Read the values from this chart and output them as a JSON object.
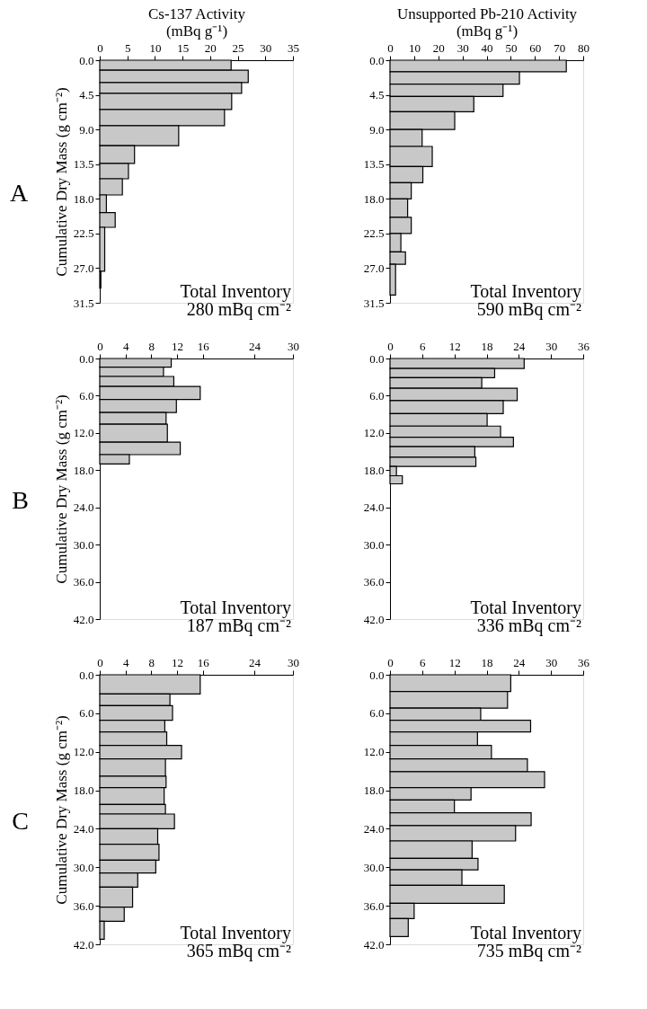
{
  "chart_data": [
    {
      "type": "histogram",
      "orientation": "horizontal",
      "title": "A",
      "xlabel": "Cs-137 Activity\n(mBq g⁻¹)",
      "ylabel": "Cumulative Dry Mass (g cm⁻²)",
      "color": "#c8c8c8",
      "bins": [
        0,
        1.3,
        2.9,
        4.3,
        6.4,
        8.5,
        11.1,
        13.4,
        15.4,
        17.5,
        19.8,
        21.7,
        27.4,
        29.6
      ],
      "values": [
        23.8,
        26.9,
        25.7,
        23.9,
        22.6,
        14.3,
        6.3,
        5.2,
        4.1,
        1.2,
        2.8,
        0.9,
        0.2
      ],
      "xlim": [
        0,
        35
      ],
      "xticks": [
        0,
        5,
        10,
        15,
        20,
        25,
        30,
        35
      ],
      "ylim": [
        31.5,
        0
      ],
      "yticks": [
        {
          "value": 0,
          "label": "0.0"
        },
        4.5,
        {
          "value": 9,
          "label": "9.0"
        },
        13.5,
        {
          "value": 18,
          "label": "18.0"
        },
        22.5,
        {
          "value": 27,
          "label": "27.0"
        },
        31.5
      ],
      "annotations": [
        "Total Inventory\n280 mBq cm⁻²"
      ],
      "grid": false
    },
    {
      "type": "histogram",
      "orientation": "horizontal",
      "xlabel": "Unsupported Pb-210 Activity\n(mBq g⁻¹)",
      "color": "#c8c8c8",
      "bins": [
        0,
        1.5,
        3.1,
        4.7,
        6.7,
        9.0,
        11.2,
        13.8,
        15.9,
        18.0,
        20.4,
        22.5,
        24.9,
        26.5,
        30.5
      ],
      "values": [
        73,
        53.6,
        46.8,
        34.7,
        26.8,
        13.3,
        17.5,
        13.6,
        8.8,
        7.3,
        8.8,
        4.5,
        6.4,
        2.3
      ],
      "xlim": [
        0,
        80
      ],
      "xticks": [
        0,
        10,
        20,
        30,
        40,
        50,
        60,
        70,
        80
      ],
      "ylim": [
        31.5,
        0
      ],
      "yticks": [
        {
          "value": 0,
          "label": "0.0"
        },
        4.5,
        {
          "value": 9,
          "label": "9.0"
        },
        13.5,
        {
          "value": 18,
          "label": "18.0"
        },
        22.5,
        {
          "value": 27,
          "label": "27.0"
        },
        31.5
      ],
      "annotations": [
        "Total Inventory\n590 mBq cm⁻²"
      ],
      "grid": false
    },
    {
      "type": "histogram",
      "orientation": "horizontal",
      "title": "B",
      "ylabel": "Cumulative Dry Mass (g cm⁻²)",
      "color": "#c8c8c8",
      "bins": [
        0,
        1.4,
        2.9,
        4.5,
        6.6,
        8.7,
        10.6,
        13.5,
        15.5,
        17.0
      ],
      "values": [
        11.1,
        9.9,
        11.5,
        15.6,
        11.9,
        10.3,
        10.5,
        12.5,
        4.6
      ],
      "xlim": [
        0,
        30
      ],
      "xticks": [
        0,
        4,
        8,
        12,
        16,
        24,
        30
      ],
      "ylim": [
        42,
        0
      ],
      "yticks": [
        {
          "value": 0,
          "label": "0.0"
        },
        {
          "value": 6,
          "label": "6.0"
        },
        {
          "value": 12,
          "label": "12.0"
        },
        {
          "value": 18,
          "label": "18.0"
        },
        {
          "value": 24,
          "label": "24.0"
        },
        {
          "value": 30,
          "label": "30.0"
        },
        {
          "value": 36,
          "label": "36.0"
        },
        {
          "value": 42,
          "label": "42.0"
        }
      ],
      "annotations": [
        "Total Inventory\n187 mBq cm⁻²"
      ],
      "grid": false
    },
    {
      "type": "histogram",
      "orientation": "horizontal",
      "color": "#c8c8c8",
      "bins": [
        0,
        1.6,
        3.1,
        4.8,
        6.8,
        8.9,
        10.9,
        12.7,
        14.2,
        15.9,
        17.4,
        18.9,
        20.2
      ],
      "values": [
        25.0,
        19.5,
        17.1,
        23.7,
        21.1,
        18.1,
        20.6,
        23.0,
        15.8,
        16.0,
        1.2,
        2.3
      ],
      "xlim": [
        0,
        36
      ],
      "xticks": [
        0,
        6,
        12,
        18,
        24,
        30,
        36
      ],
      "ylim": [
        42,
        0
      ],
      "yticks": [
        {
          "value": 0,
          "label": "0.0"
        },
        {
          "value": 6,
          "label": "6.0"
        },
        {
          "value": 12,
          "label": "12.0"
        },
        {
          "value": 18,
          "label": "18.0"
        },
        {
          "value": 24,
          "label": "24.0"
        },
        {
          "value": 30,
          "label": "30.0"
        },
        {
          "value": 36,
          "label": "36.0"
        },
        {
          "value": 42,
          "label": "42.0"
        }
      ],
      "annotations": [
        "Total Inventory\n336 mBq cm⁻²"
      ],
      "grid": false
    },
    {
      "type": "histogram",
      "orientation": "horizontal",
      "title": "C",
      "ylabel": "Cumulative Dry Mass (g cm⁻²)",
      "color": "#c8c8c8",
      "bins": [
        0,
        3.0,
        4.8,
        7.1,
        8.9,
        11.0,
        13.1,
        15.8,
        17.6,
        20.2,
        21.7,
        24.0,
        26.4,
        28.9,
        30.9,
        33.1,
        36.2,
        38.4,
        41.2
      ],
      "values": [
        15.6,
        10.9,
        11.3,
        10.1,
        10.4,
        12.7,
        10.2,
        10.3,
        10.0,
        10.2,
        11.6,
        9.0,
        9.2,
        8.7,
        5.9,
        5.1,
        3.8,
        0.7
      ],
      "xlim": [
        0,
        30
      ],
      "xticks": [
        0,
        4,
        8,
        12,
        16,
        24,
        30
      ],
      "ylim": [
        42,
        0
      ],
      "yticks": [
        {
          "value": 0,
          "label": "0.0"
        },
        {
          "value": 6,
          "label": "6.0"
        },
        {
          "value": 12,
          "label": "12.0"
        },
        {
          "value": 18,
          "label": "18.0"
        },
        {
          "value": 24,
          "label": "24.0"
        },
        {
          "value": 30,
          "label": "30.0"
        },
        {
          "value": 36,
          "label": "36.0"
        },
        {
          "value": 42,
          "label": "42.0"
        }
      ],
      "annotations": [
        "Total Inventory\n365 mBq cm⁻²"
      ],
      "grid": false
    },
    {
      "type": "histogram",
      "orientation": "horizontal",
      "color": "#c8c8c8",
      "bins": [
        0,
        2.6,
        5.2,
        7.1,
        8.9,
        11.0,
        13.1,
        15.1,
        17.6,
        19.5,
        21.5,
        23.5,
        25.9,
        28.6,
        30.4,
        32.8,
        35.6,
        38.0,
        40.8
      ],
      "values": [
        22.5,
        21.9,
        16.9,
        26.2,
        16.3,
        18.9,
        25.6,
        28.8,
        15.1,
        12.0,
        26.3,
        23.4,
        15.3,
        16.4,
        13.4,
        21.3,
        4.5,
        3.4
      ],
      "xlim": [
        0,
        36
      ],
      "xticks": [
        0,
        6,
        12,
        18,
        24,
        30,
        36
      ],
      "ylim": [
        42,
        0
      ],
      "yticks": [
        {
          "value": 0,
          "label": "0.0"
        },
        {
          "value": 6,
          "label": "6.0"
        },
        {
          "value": 12,
          "label": "12.0"
        },
        {
          "value": 18,
          "label": "18.0"
        },
        {
          "value": 24,
          "label": "24.0"
        },
        {
          "value": 30,
          "label": "30.0"
        },
        {
          "value": 36,
          "label": "36.0"
        },
        {
          "value": 42,
          "label": "42.0"
        }
      ],
      "annotations": [
        "Total Inventory\n735 mBq cm⁻²"
      ],
      "grid": false
    }
  ]
}
